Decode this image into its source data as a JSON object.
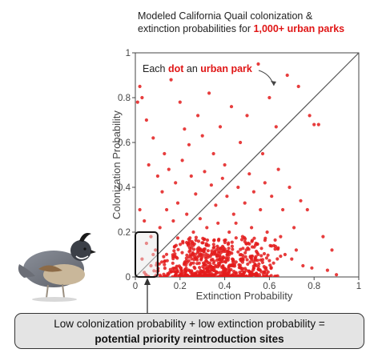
{
  "title": {
    "line1": "Modeled California Quail colonization &",
    "line2_prefix": "extinction probabilities for ",
    "line2_highlight": "1,000+ urban parks"
  },
  "annotation": {
    "part1": "Each ",
    "part2": "dot",
    "part3": " an ",
    "part4": "urban park"
  },
  "callout": {
    "line1": "Low colonization probability + low extinction probability =",
    "line2": "potential priority reintroduction sites"
  },
  "colors": {
    "dot": "#e31b1b",
    "highlight": "#e01616",
    "axis": "#444444"
  },
  "chart_data": {
    "type": "scatter",
    "xlabel": "Extinction Probability",
    "ylabel": "Colonization Probability",
    "xlim": [
      0,
      1
    ],
    "ylim": [
      0,
      1
    ],
    "x_ticks": [
      0,
      0.2,
      0.4,
      0.6,
      0.8,
      1
    ],
    "x_tick_labels": [
      "0",
      "0.2",
      "0.4",
      "0.6",
      "0.8",
      "1"
    ],
    "y_ticks": [
      0,
      0.2,
      0.4,
      0.6,
      0.8,
      1
    ],
    "y_tick_labels": [
      "0",
      "0.2",
      "0.4",
      "0.6",
      "0.8",
      "1"
    ],
    "reference_line": {
      "from": [
        0,
        0
      ],
      "to": [
        1,
        1
      ]
    },
    "highlight_region": {
      "x": [
        0,
        0.1
      ],
      "y": [
        0,
        0.2
      ]
    },
    "points": [
      [
        0.02,
        0.85
      ],
      [
        0.03,
        0.8
      ],
      [
        0.01,
        0.78
      ],
      [
        0.05,
        0.7
      ],
      [
        0.08,
        0.62
      ],
      [
        0.13,
        0.55
      ],
      [
        0.16,
        0.88
      ],
      [
        0.2,
        0.78
      ],
      [
        0.22,
        0.66
      ],
      [
        0.24,
        0.59
      ],
      [
        0.28,
        0.72
      ],
      [
        0.3,
        0.63
      ],
      [
        0.33,
        0.82
      ],
      [
        0.35,
        0.55
      ],
      [
        0.38,
        0.67
      ],
      [
        0.4,
        0.5
      ],
      [
        0.43,
        0.76
      ],
      [
        0.47,
        0.6
      ],
      [
        0.5,
        0.72
      ],
      [
        0.55,
        0.95
      ],
      [
        0.57,
        0.55
      ],
      [
        0.6,
        0.8
      ],
      [
        0.63,
        0.67
      ],
      [
        0.68,
        0.9
      ],
      [
        0.73,
        0.85
      ],
      [
        0.78,
        0.72
      ],
      [
        0.8,
        0.68
      ],
      [
        0.82,
        0.68
      ],
      [
        0.06,
        0.5
      ],
      [
        0.1,
        0.45
      ],
      [
        0.12,
        0.38
      ],
      [
        0.15,
        0.48
      ],
      [
        0.18,
        0.42
      ],
      [
        0.21,
        0.52
      ],
      [
        0.25,
        0.45
      ],
      [
        0.27,
        0.37
      ],
      [
        0.31,
        0.47
      ],
      [
        0.34,
        0.41
      ],
      [
        0.36,
        0.32
      ],
      [
        0.39,
        0.44
      ],
      [
        0.41,
        0.36
      ],
      [
        0.44,
        0.28
      ],
      [
        0.46,
        0.4
      ],
      [
        0.49,
        0.33
      ],
      [
        0.51,
        0.46
      ],
      [
        0.53,
        0.38
      ],
      [
        0.56,
        0.3
      ],
      [
        0.58,
        0.42
      ],
      [
        0.61,
        0.36
      ],
      [
        0.64,
        0.48
      ],
      [
        0.66,
        0.3
      ],
      [
        0.69,
        0.4
      ],
      [
        0.71,
        0.22
      ],
      [
        0.74,
        0.34
      ],
      [
        0.77,
        0.3
      ],
      [
        0.84,
        0.18
      ],
      [
        0.88,
        0.12
      ],
      [
        0.02,
        0.3
      ],
      [
        0.04,
        0.25
      ],
      [
        0.07,
        0.18
      ],
      [
        0.09,
        0.12
      ],
      [
        0.11,
        0.22
      ],
      [
        0.14,
        0.3
      ],
      [
        0.17,
        0.25
      ],
      [
        0.19,
        0.33
      ],
      [
        0.23,
        0.28
      ],
      [
        0.26,
        0.2
      ],
      [
        0.29,
        0.26
      ],
      [
        0.32,
        0.22
      ],
      [
        0.37,
        0.24
      ],
      [
        0.42,
        0.2
      ],
      [
        0.45,
        0.24
      ],
      [
        0.48,
        0.18
      ],
      [
        0.52,
        0.22
      ],
      [
        0.54,
        0.15
      ],
      [
        0.59,
        0.2
      ],
      [
        0.62,
        0.14
      ],
      [
        0.65,
        0.18
      ],
      [
        0.67,
        0.1
      ],
      [
        0.7,
        0.08
      ],
      [
        0.72,
        0.12
      ],
      [
        0.75,
        0.05
      ],
      [
        0.79,
        0.04
      ],
      [
        0.86,
        0.03
      ],
      [
        0.9,
        0.01
      ],
      [
        0.03,
        0.08
      ],
      [
        0.05,
        0.15
      ],
      [
        0.07,
        0.05
      ],
      [
        0.08,
        0.1
      ],
      [
        0.04,
        0.02
      ]
    ],
    "dense_cluster": {
      "x": [
        0.05,
        0.65
      ],
      "y": [
        0,
        0.18
      ],
      "center": [
        0.32,
        0.05
      ]
    }
  }
}
